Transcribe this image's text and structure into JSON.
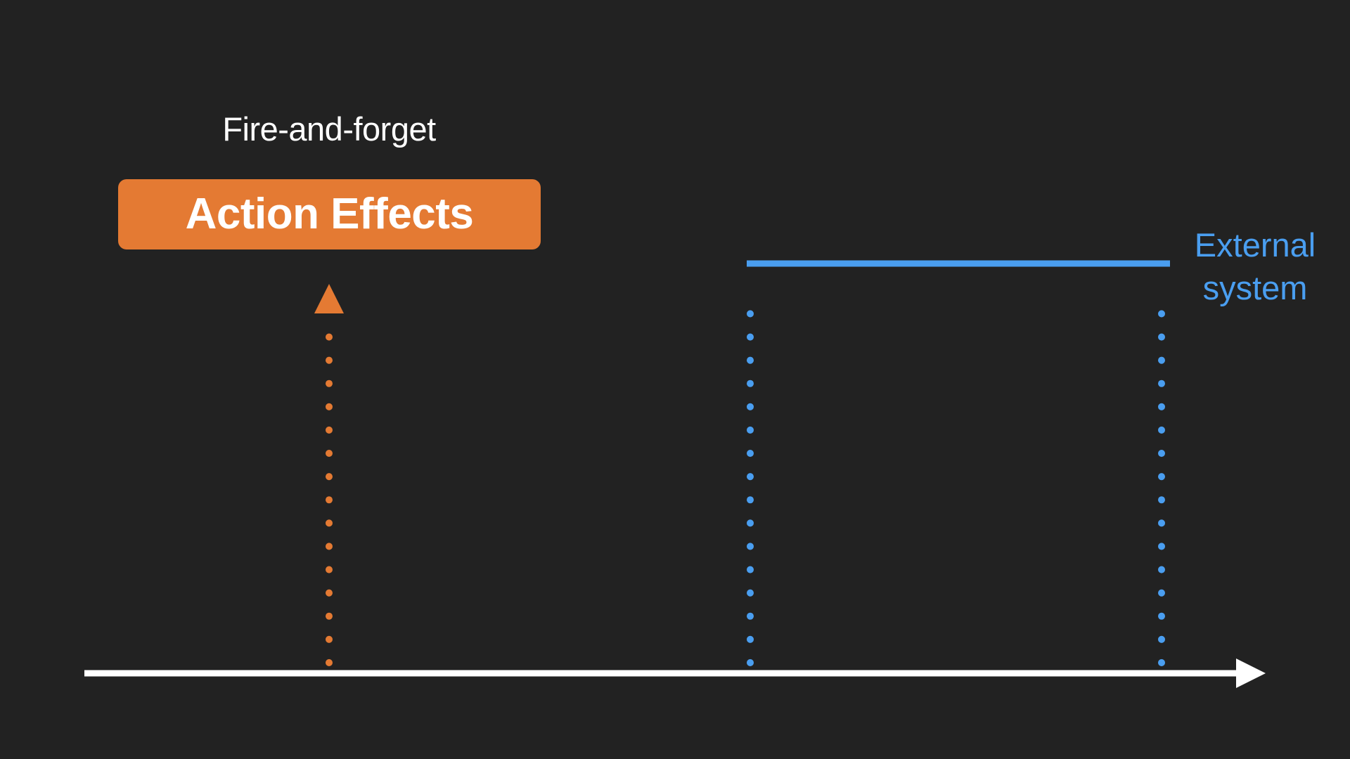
{
  "labels": {
    "caption": "Fire-and-forget",
    "action_box": "Action Effects",
    "external_system_line1": "External",
    "external_system_line2": "system"
  },
  "colors": {
    "background": "#222222",
    "action": "#E47A33",
    "external": "#4A9EF0",
    "timeline": "#FFFFFF"
  }
}
